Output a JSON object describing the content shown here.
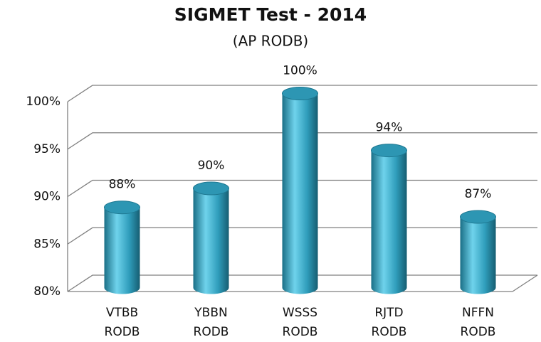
{
  "chart_data": {
    "type": "bar",
    "title": "SIGMET Test - 2014",
    "subtitle": "(AP RODB)",
    "categories": [
      [
        "VTBB",
        "RODB"
      ],
      [
        "YBBN",
        "RODB"
      ],
      [
        "WSSS",
        "RODB"
      ],
      [
        "RJTD",
        "RODB"
      ],
      [
        "NFFN",
        "RODB"
      ]
    ],
    "values": [
      88,
      90,
      100,
      94,
      87
    ],
    "value_labels": [
      "88%",
      "90%",
      "100%",
      "94%",
      "87%"
    ],
    "color": "#31a3c2",
    "ylim": [
      80,
      100
    ],
    "yticks": [
      {
        "value": 80,
        "label": "80%"
      },
      {
        "value": 85,
        "label": "85%"
      },
      {
        "value": 90,
        "label": "90%"
      },
      {
        "value": 95,
        "label": "95%"
      },
      {
        "value": 100,
        "label": "100%"
      }
    ],
    "grid": true
  }
}
